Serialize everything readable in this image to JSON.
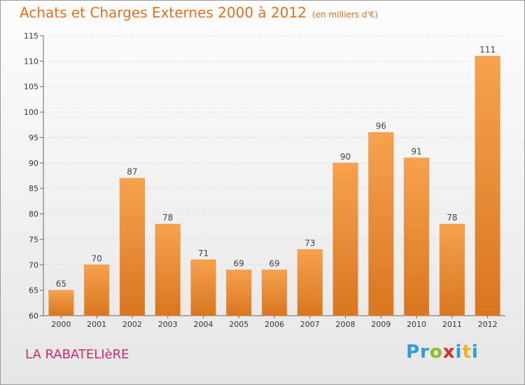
{
  "chart_data": {
    "type": "bar",
    "title": "Achats et Charges Externes 2000 à 2012",
    "subtitle": "(en milliers d'€)",
    "categories": [
      "2000",
      "2001",
      "2002",
      "2003",
      "2004",
      "2005",
      "2006",
      "2007",
      "2008",
      "2009",
      "2010",
      "2011",
      "2012"
    ],
    "values": [
      65,
      70,
      87,
      78,
      71,
      69,
      69,
      73,
      90,
      96,
      91,
      78,
      111
    ],
    "ylim": [
      60,
      115
    ],
    "yticks": [
      60,
      65,
      70,
      75,
      80,
      85,
      90,
      95,
      100,
      105,
      110,
      115
    ],
    "grid": true,
    "colors": {
      "bar_top": "#f7a24e",
      "bar_bottom": "#d9761f",
      "title": "#e8701a"
    }
  },
  "footer": {
    "commune": "LA RABATELIèRE",
    "logo": [
      "Pr",
      "o",
      "x",
      "i",
      "t",
      "i"
    ]
  }
}
